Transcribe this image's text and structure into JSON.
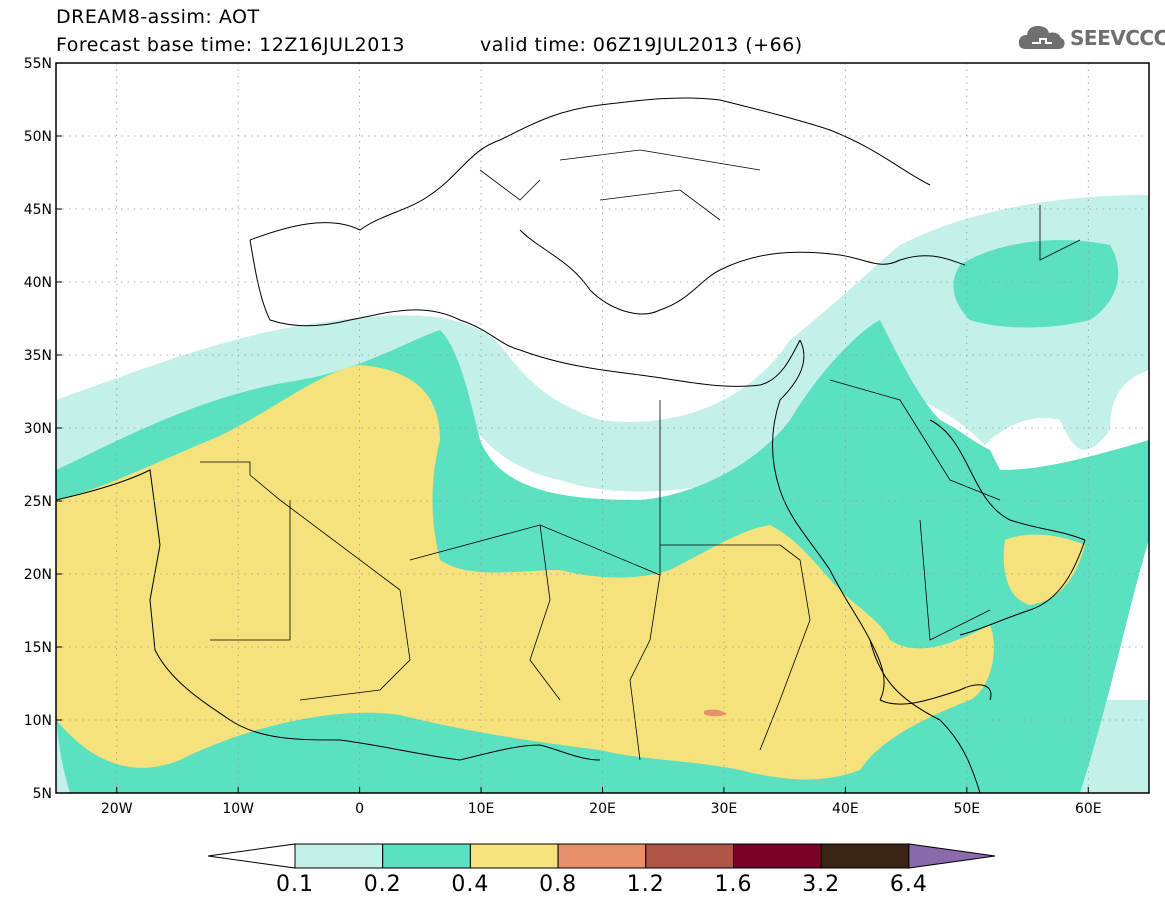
{
  "header": {
    "title": "DREAM8-assim: AOT",
    "base_time": "Forecast base time: 12Z16JUL2013",
    "valid_time": "valid time: 06Z19JUL2013 (+66)"
  },
  "logo": {
    "text": "SEEVCCC",
    "icon": "cloud-logo-icon"
  },
  "map": {
    "region": "North Africa, Europe and Middle East",
    "lon_range": [
      -25,
      65
    ],
    "lat_range": [
      5,
      55
    ],
    "lat_labels": [
      "5N",
      "10N",
      "15N",
      "20N",
      "25N",
      "30N",
      "35N",
      "40N",
      "45N",
      "50N",
      "55N"
    ],
    "lon_labels": [
      "20W",
      "10W",
      "0",
      "10E",
      "20E",
      "30E",
      "40E",
      "50E",
      "60E"
    ],
    "grid": "dotted",
    "colors": {
      "aot_0_1_0_2": "#c4f0ea",
      "aot_0_2_0_4": "#5be0c0",
      "aot_0_4_0_8": "#f6e27c",
      "aot_0_8_1_2": "#e8906c",
      "borders": "#000000"
    }
  },
  "colorbar": {
    "labels": [
      "0.1",
      "0.2",
      "0.4",
      "0.8",
      "1.2",
      "1.6",
      "3.2",
      "6.4"
    ],
    "colors": [
      "#c4f0ea",
      "#5be0c0",
      "#f6e27c",
      "#e8906c",
      "#b05448",
      "#7a0028",
      "#3a2414"
    ],
    "under_color": "#ffffff",
    "over_color": "#8a6aaa"
  }
}
